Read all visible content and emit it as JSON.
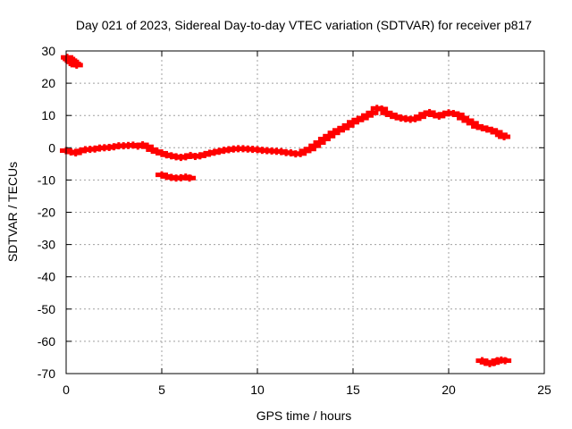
{
  "chart_data": {
    "type": "scatter",
    "title": "Day 021 of 2023, Sidereal Day-to-day VTEC variation (SDTVAR) for receiver p817",
    "xlabel": "GPS time / hours",
    "ylabel": "SDTVAR / TECUs",
    "xlim": [
      0,
      25
    ],
    "ylim": [
      -70,
      30
    ],
    "x_ticks": [
      0,
      5,
      10,
      15,
      20,
      25
    ],
    "y_ticks": [
      30,
      20,
      10,
      0,
      -10,
      -20,
      -30,
      -40,
      -50,
      -60,
      -70
    ],
    "grid": true,
    "colors": {
      "series": "#ff0000",
      "grid": "#a0a0a0",
      "axes": "#000000"
    },
    "series": [
      {
        "name": "SDTVAR",
        "points": [
          [
            0.05,
            28.0
          ],
          [
            0.15,
            27.5
          ],
          [
            0.25,
            27.0
          ],
          [
            0.35,
            26.6
          ],
          [
            0.45,
            26.0
          ],
          [
            0.55,
            25.6
          ],
          [
            0.0,
            -0.9
          ],
          [
            0.25,
            -1.3
          ],
          [
            0.5,
            -1.6
          ],
          [
            0.75,
            -1.0
          ],
          [
            1.0,
            -0.6
          ],
          [
            1.25,
            -0.5
          ],
          [
            1.5,
            -0.4
          ],
          [
            1.75,
            -0.1
          ],
          [
            2.0,
            0.0
          ],
          [
            2.25,
            0.1
          ],
          [
            2.5,
            0.3
          ],
          [
            2.75,
            0.6
          ],
          [
            3.0,
            0.6
          ],
          [
            3.25,
            0.7
          ],
          [
            3.5,
            0.8
          ],
          [
            3.75,
            0.5
          ],
          [
            4.0,
            0.9
          ],
          [
            4.25,
            0.3
          ],
          [
            4.5,
            -0.6
          ],
          [
            4.75,
            -1.2
          ],
          [
            5.0,
            -1.7
          ],
          [
            5.25,
            -2.2
          ],
          [
            5.5,
            -2.5
          ],
          [
            5.75,
            -2.8
          ],
          [
            6.0,
            -3.0
          ],
          [
            6.25,
            -2.8
          ],
          [
            6.5,
            -2.4
          ],
          [
            6.75,
            -2.7
          ],
          [
            7.0,
            -2.5
          ],
          [
            7.25,
            -2.1
          ],
          [
            7.5,
            -1.7
          ],
          [
            7.75,
            -1.4
          ],
          [
            8.0,
            -1.1
          ],
          [
            8.25,
            -0.8
          ],
          [
            8.5,
            -0.6
          ],
          [
            8.75,
            -0.4
          ],
          [
            9.0,
            -0.3
          ],
          [
            9.25,
            -0.3
          ],
          [
            9.5,
            -0.4
          ],
          [
            9.75,
            -0.5
          ],
          [
            10.0,
            -0.6
          ],
          [
            10.25,
            -0.8
          ],
          [
            10.5,
            -0.9
          ],
          [
            10.75,
            -1.0
          ],
          [
            11.0,
            -1.1
          ],
          [
            11.25,
            -1.2
          ],
          [
            11.5,
            -1.5
          ],
          [
            11.75,
            -1.6
          ],
          [
            12.0,
            -1.9
          ],
          [
            12.25,
            -1.8
          ],
          [
            12.5,
            -1.0
          ],
          [
            12.75,
            -0.4
          ],
          [
            13.0,
            0.6
          ],
          [
            13.25,
            1.6
          ],
          [
            13.5,
            2.7
          ],
          [
            13.75,
            3.6
          ],
          [
            14.0,
            4.6
          ],
          [
            14.25,
            5.4
          ],
          [
            14.5,
            6.1
          ],
          [
            14.75,
            6.9
          ],
          [
            15.0,
            7.9
          ],
          [
            15.25,
            8.6
          ],
          [
            15.5,
            9.2
          ],
          [
            15.75,
            10.0
          ],
          [
            16.0,
            10.8
          ],
          [
            16.25,
            12.2
          ],
          [
            16.5,
            12.0
          ],
          [
            16.75,
            10.8
          ],
          [
            17.0,
            10.2
          ],
          [
            17.25,
            9.6
          ],
          [
            17.5,
            9.2
          ],
          [
            17.75,
            9.0
          ],
          [
            18.0,
            8.8
          ],
          [
            18.25,
            9.0
          ],
          [
            18.5,
            9.6
          ],
          [
            18.75,
            10.4
          ],
          [
            19.0,
            10.9
          ],
          [
            19.25,
            10.2
          ],
          [
            19.5,
            9.8
          ],
          [
            19.75,
            10.4
          ],
          [
            20.0,
            10.8
          ],
          [
            20.25,
            10.6
          ],
          [
            20.5,
            10.2
          ],
          [
            20.75,
            9.2
          ],
          [
            21.0,
            8.4
          ],
          [
            21.25,
            7.6
          ],
          [
            21.5,
            6.6
          ],
          [
            21.75,
            6.2
          ],
          [
            22.0,
            5.8
          ],
          [
            22.25,
            5.4
          ],
          [
            22.5,
            4.8
          ],
          [
            22.75,
            4.0
          ],
          [
            22.9,
            3.4
          ],
          [
            5.0,
            -8.4
          ],
          [
            5.25,
            -8.9
          ],
          [
            5.5,
            -9.2
          ],
          [
            5.75,
            -9.4
          ],
          [
            6.0,
            -9.3
          ],
          [
            6.25,
            -9.1
          ],
          [
            6.45,
            -9.4
          ],
          [
            21.75,
            -66.0
          ],
          [
            21.95,
            -66.5
          ],
          [
            22.15,
            -66.9
          ],
          [
            22.35,
            -66.6
          ],
          [
            22.55,
            -66.0
          ],
          [
            22.75,
            -65.8
          ],
          [
            22.95,
            -66.0
          ]
        ]
      }
    ]
  }
}
